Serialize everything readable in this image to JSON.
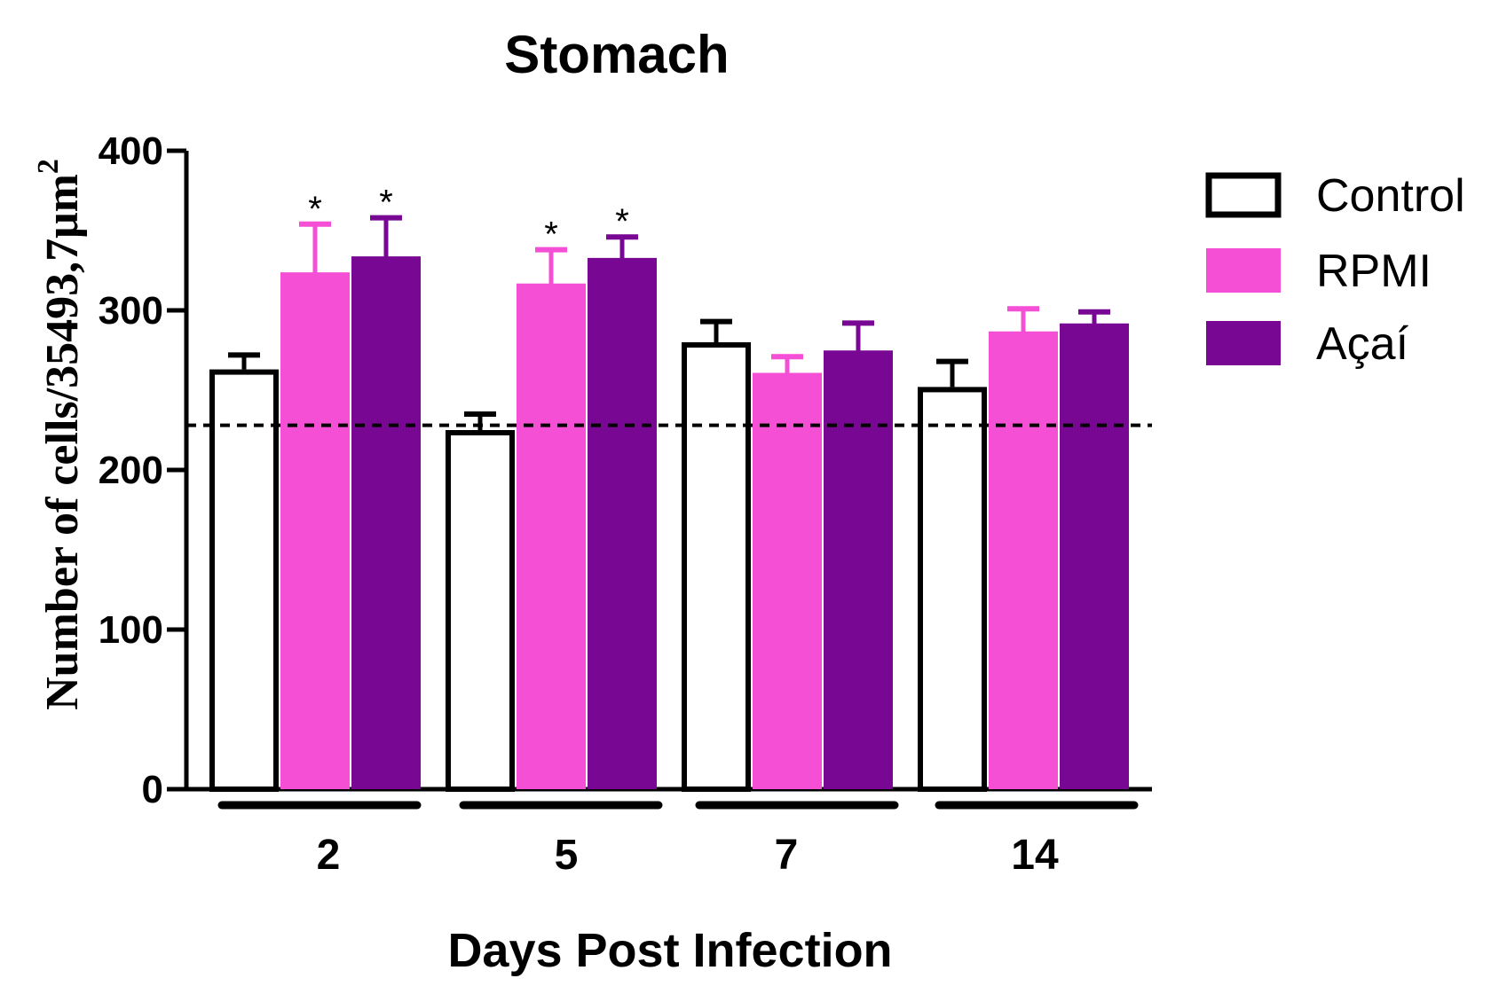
{
  "chart_data": {
    "type": "bar",
    "title": "Stomach",
    "xlabel": "Days Post Infection",
    "ylabel": "Number of cells/35493,7μm",
    "ylabel_superscript": "2",
    "ylim": [
      0,
      400
    ],
    "yticks": [
      0,
      100,
      200,
      300,
      400
    ],
    "categories": [
      "2",
      "5",
      "7",
      "14"
    ],
    "series": [
      {
        "name": "Control",
        "color": "#ffffff",
        "stroke": "#000000",
        "values": [
          263,
          225,
          280,
          252
        ],
        "errors": [
          9,
          10,
          13,
          16
        ],
        "significant": [
          false,
          false,
          false,
          false
        ]
      },
      {
        "name": "RPMI",
        "color": "#f54fd6",
        "stroke": "#f54fd6",
        "values": [
          323,
          316,
          260,
          286
        ],
        "errors": [
          31,
          22,
          11,
          15
        ],
        "significant": [
          true,
          true,
          false,
          false
        ]
      },
      {
        "name": "Açaí",
        "color": "#780893",
        "stroke": "#780893",
        "values": [
          333,
          332,
          274,
          291
        ],
        "errors": [
          25,
          14,
          18,
          8
        ],
        "significant": [
          true,
          true,
          false,
          false
        ]
      }
    ],
    "reference_line": {
      "value": 228,
      "style": "dashed"
    },
    "significance_marker": "*",
    "legend": {
      "position": "top-right",
      "entries": [
        "Control",
        "RPMI",
        "Açaí"
      ]
    }
  }
}
